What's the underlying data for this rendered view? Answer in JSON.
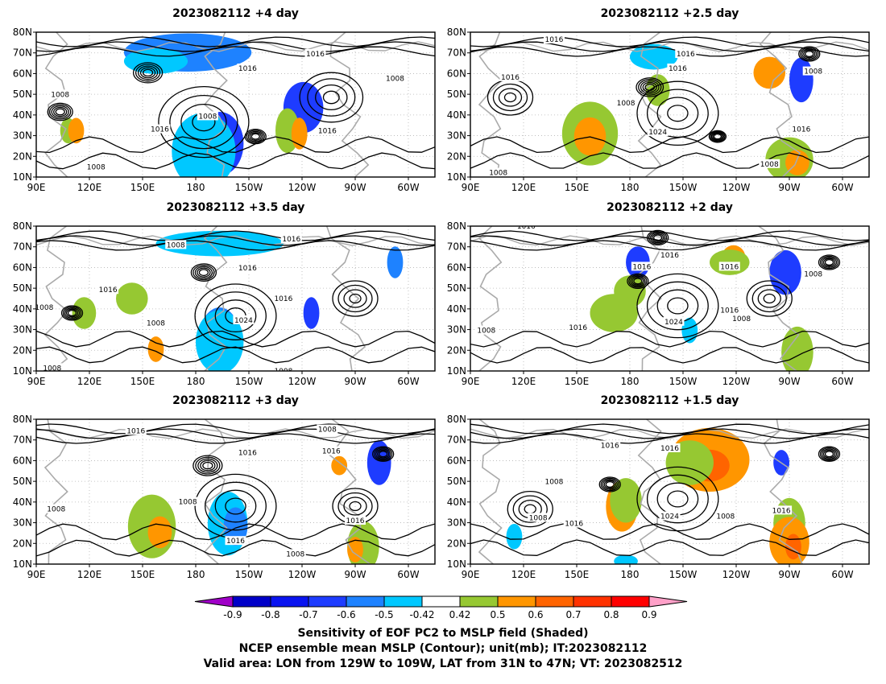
{
  "panels": [
    {
      "title": "2023082112 +4 day",
      "labels": [
        "1008",
        "1016",
        "1016",
        "1008",
        "1016",
        "1016",
        "1008",
        "1008"
      ]
    },
    {
      "title": "2023082112 +2.5 day",
      "labels": [
        "1016",
        "1016",
        "1016",
        "1008",
        "1016",
        "1008",
        "1024",
        "1016",
        "1008",
        "1008"
      ]
    },
    {
      "title": "2023082112 +3.5 day",
      "labels": [
        "1008",
        "1016",
        "1016",
        "1016",
        "1008",
        "1016",
        "1024",
        "1008",
        "1008",
        "1008"
      ]
    },
    {
      "title": "2023082112 +2 day",
      "labels": [
        "1016",
        "1016",
        "1016",
        "1016",
        "1008",
        "1024",
        "1016",
        "1008",
        "1008",
        "1016"
      ]
    },
    {
      "title": "2023082112 +3 day",
      "labels": [
        "1016",
        "1008",
        "1016",
        "1016",
        "1008",
        "1008",
        "1016",
        "1016",
        "1008"
      ]
    },
    {
      "title": "2023082112 +1.5 day",
      "labels": [
        "1016",
        "1016",
        "1008",
        "1008",
        "1016",
        "1024",
        "1008",
        "1016"
      ]
    }
  ],
  "axes": {
    "lat_labels": [
      "80N",
      "70N",
      "60N",
      "50N",
      "40N",
      "30N",
      "20N",
      "10N"
    ],
    "lon_labels": [
      "90E",
      "120E",
      "150E",
      "180",
      "150W",
      "120W",
      "90W",
      "60W"
    ]
  },
  "colorbar": {
    "ticks": [
      "-0.9",
      "-0.8",
      "-0.7",
      "-0.6",
      "-0.5",
      "-0.42",
      "0.42",
      "0.5",
      "0.6",
      "0.7",
      "0.8",
      "0.9"
    ],
    "colors": [
      "#a000c8",
      "#0000c8",
      "#0a14f0",
      "#1e3cff",
      "#1e82ff",
      "#00c8ff",
      "#ffffff",
      "#96c832",
      "#ff9600",
      "#ff6400",
      "#ff3200",
      "#ff0000",
      "#ffa0c8"
    ]
  },
  "caption": {
    "line1": "Sensitivity of EOF PC2 to MSLP field (Shaded)",
    "line2": "NCEP ensemble mean MSLP (Contour); unit(mb); IT:2023082112",
    "line3": "Valid area: LON from 129W to 109W, LAT from 31N to 47N; VT: 2023082512"
  }
}
